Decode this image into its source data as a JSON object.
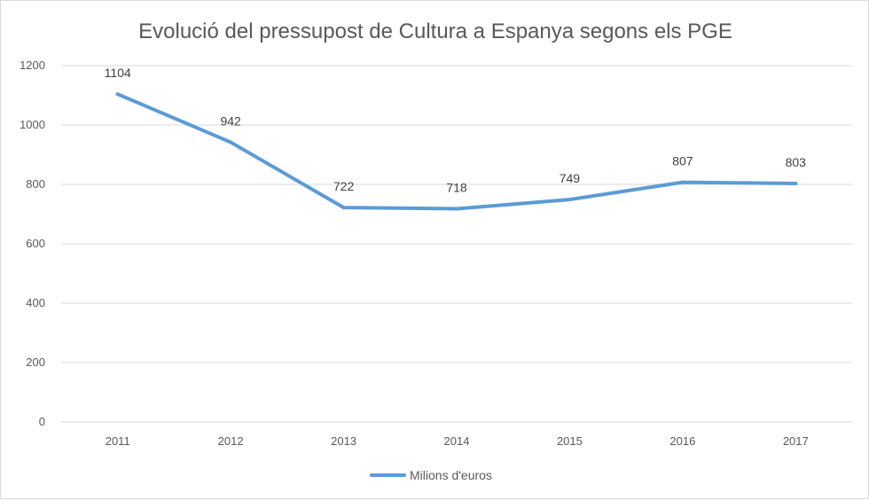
{
  "chart_data": {
    "type": "line",
    "title": "Evolució del pressupost de Cultura  a Espanya segons els PGE",
    "xlabel": "",
    "ylabel": "",
    "categories": [
      "2011",
      "2012",
      "2013",
      "2014",
      "2015",
      "2016",
      "2017"
    ],
    "series": [
      {
        "name": "Milions d'euros",
        "values": [
          1104,
          942,
          722,
          718,
          749,
          807,
          803
        ],
        "color": "#5b9bd5"
      }
    ],
    "ylim": [
      0,
      1200
    ],
    "yticks": [
      0,
      200,
      400,
      600,
      800,
      1000,
      1200
    ],
    "grid": true,
    "legend": "bottom"
  }
}
